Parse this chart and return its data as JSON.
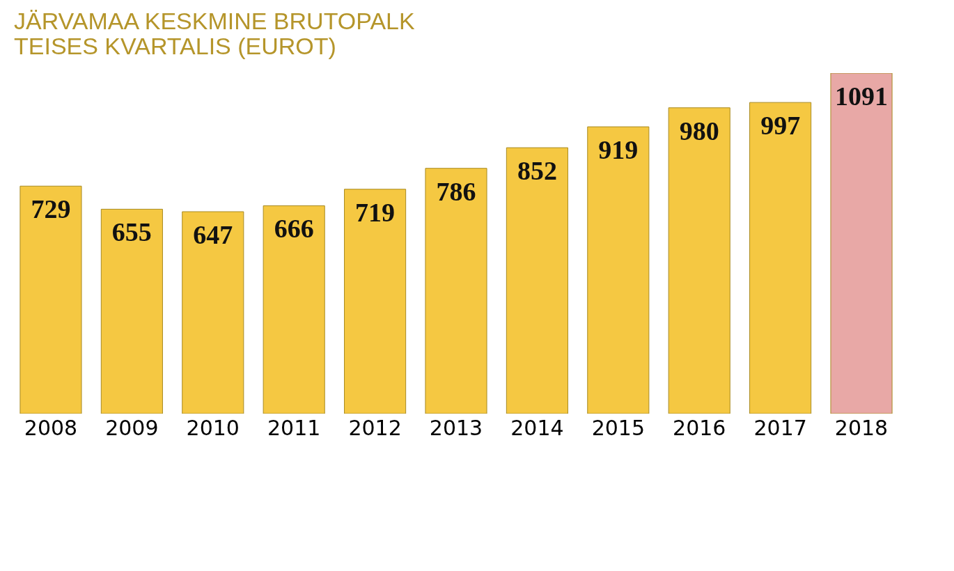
{
  "chart_data": {
    "type": "bar",
    "title": [
      "JÄRVAMAA KESKMINE BRUTOPALK",
      "TEISES KVARTALIS (EUROT)"
    ],
    "categories": [
      "2008",
      "2009",
      "2010",
      "2011",
      "2012",
      "2013",
      "2014",
      "2015",
      "2016",
      "2017",
      "2018"
    ],
    "values": [
      729,
      655,
      647,
      666,
      719,
      786,
      852,
      919,
      980,
      997,
      1091
    ],
    "colors": [
      "#f5c842",
      "#f5c842",
      "#f5c842",
      "#f5c842",
      "#f5c842",
      "#f5c842",
      "#f5c842",
      "#f5c842",
      "#f5c842",
      "#f5c842",
      "#e8a8a6"
    ],
    "tick_labels": "x",
    "data_labels": true,
    "grid": false
  }
}
